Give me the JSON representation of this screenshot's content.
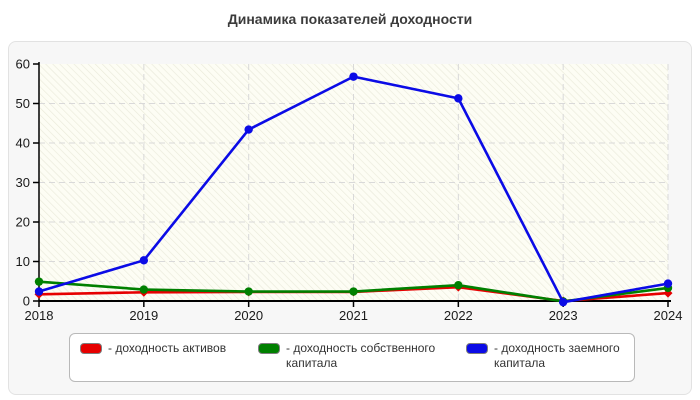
{
  "title": "Динамика показателей доходности",
  "chart_data": {
    "type": "line",
    "x": [
      "2018",
      "2019",
      "2020",
      "2021",
      "2022",
      "2023",
      "2024"
    ],
    "series": [
      {
        "name": "доходность активов",
        "color": "#e60000",
        "marker": "diamond",
        "values": [
          1.7,
          2.2,
          2.3,
          2.3,
          3.5,
          0,
          2.0
        ]
      },
      {
        "name": "доходность собственного капитала",
        "color": "#008000",
        "marker": "circle",
        "values": [
          4.9,
          2.9,
          2.4,
          2.4,
          4.0,
          -0.1,
          3.3
        ]
      },
      {
        "name": "доходность заемного капитала",
        "color": "#0b0be6",
        "marker": "circle",
        "values": [
          2.4,
          10.3,
          43.4,
          56.8,
          51.3,
          -0.3,
          4.4
        ]
      }
    ],
    "ylim": [
      0,
      60
    ],
    "yticks": [
      0,
      10,
      20,
      30,
      40,
      50,
      60
    ],
    "grid": true,
    "legend_position": "bottom",
    "legend_items": [
      {
        "label": "- доходность активов",
        "color": "#e60000"
      },
      {
        "label": "- доходность собственного капитала",
        "color": "#008000"
      },
      {
        "label": "- доходность заемного капитала",
        "color": "#0b0be6"
      }
    ]
  },
  "style_colors": {
    "plot_bg": "#fdfdf4",
    "hatch_line": "#eaeadb",
    "gridline": "#d9d9d9",
    "axis": "#000000",
    "title_color": "#3b3b3b"
  }
}
